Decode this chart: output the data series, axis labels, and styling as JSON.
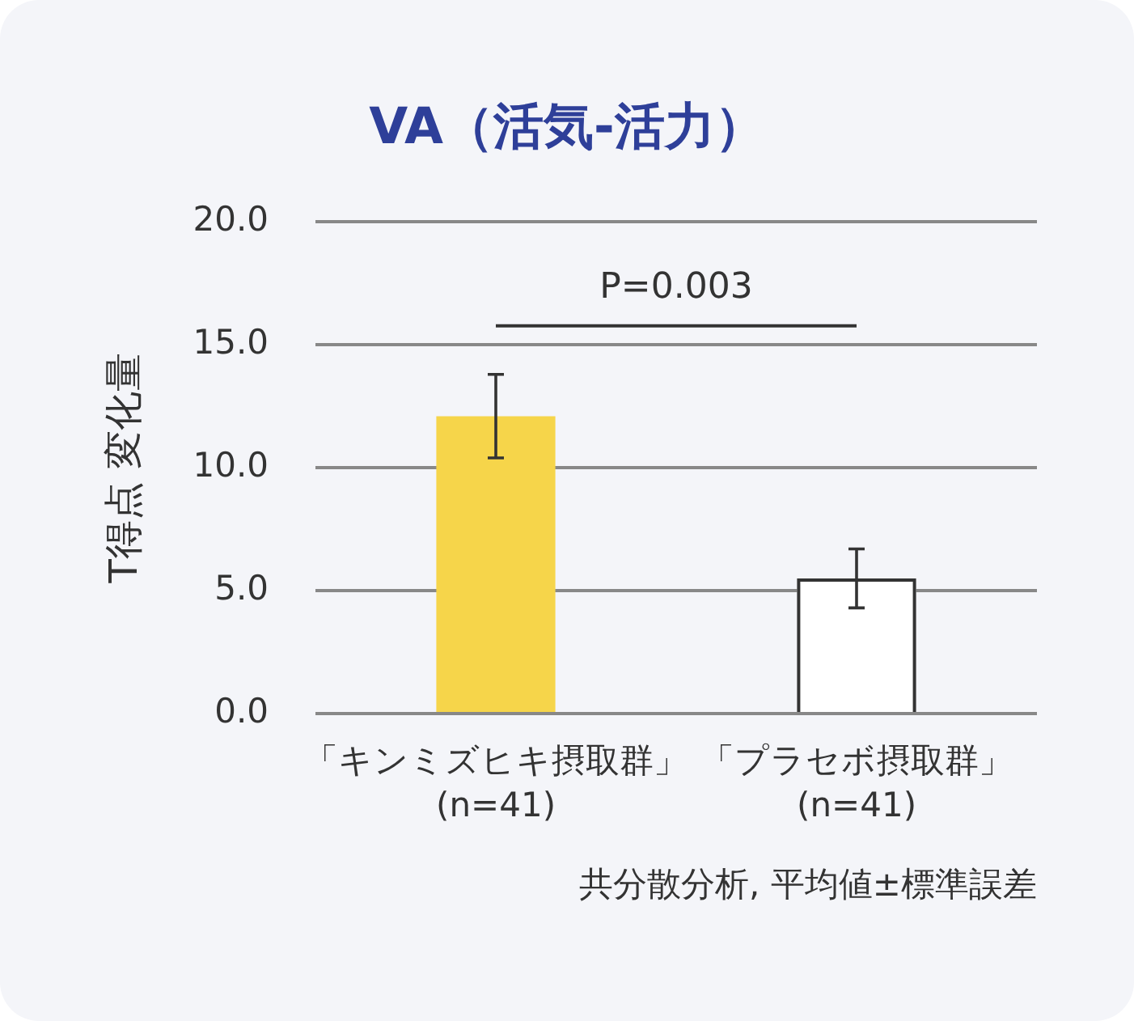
{
  "chart_data": {
    "type": "bar",
    "title": "VA（活気-活力）",
    "ylabel": "T得点 変化量",
    "categories": [
      "「キンミズヒキ摂取群」\n(n=41)",
      "「プラセボ摂取群」\n(n=41)"
    ],
    "values": [
      12.1,
      5.5
    ],
    "errors": [
      1.7,
      1.2
    ],
    "colors": [
      "#f6d54a",
      "#ffffff"
    ],
    "ylim": [
      0,
      20
    ],
    "yticks": [
      {
        "value": 0,
        "label": "0.0"
      },
      {
        "value": 5,
        "label": "5.0"
      },
      {
        "value": 10,
        "label": "10.0"
      },
      {
        "value": 15,
        "label": "15.0"
      },
      {
        "value": 20,
        "label": "20.0"
      }
    ],
    "grid": "y",
    "legend": false,
    "annotations": [
      "P=0.003",
      "共分散分析, 平均値±標準誤差"
    ]
  }
}
